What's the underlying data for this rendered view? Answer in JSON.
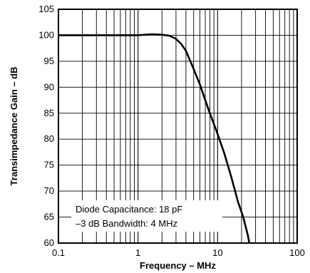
{
  "chart_data": {
    "type": "line",
    "title": "",
    "xlabel": "Frequency – MHz",
    "ylabel": "Transimpedance Gain – dB",
    "x_scale": "log",
    "xlim": [
      0.1,
      100
    ],
    "ylim": [
      60,
      105
    ],
    "grid": true,
    "x_ticks": [
      {
        "value": 0.1,
        "label": "0.1"
      },
      {
        "value": 1,
        "label": "1"
      },
      {
        "value": 10,
        "label": "10"
      },
      {
        "value": 100,
        "label": "100"
      }
    ],
    "y_ticks": [
      {
        "value": 60,
        "label": "60"
      },
      {
        "value": 65,
        "label": "65"
      },
      {
        "value": 70,
        "label": "70"
      },
      {
        "value": 75,
        "label": "75"
      },
      {
        "value": 80,
        "label": "80"
      },
      {
        "value": 85,
        "label": "85"
      },
      {
        "value": 90,
        "label": "90"
      },
      {
        "value": 95,
        "label": "95"
      },
      {
        "value": 100,
        "label": "100"
      },
      {
        "value": 105,
        "label": "105"
      }
    ],
    "series": [
      {
        "name": "",
        "x": [
          0.1,
          0.5,
          1.0,
          1.5,
          2.0,
          2.5,
          3.0,
          3.5,
          4.0,
          5.0,
          6.0,
          7.0,
          8.0,
          10.0,
          12.0,
          15.0,
          18.0,
          21.0,
          24.0,
          25.0
        ],
        "y": [
          100,
          100,
          100,
          100.2,
          100.1,
          99.9,
          99.3,
          98.3,
          97.0,
          93.5,
          90.5,
          87.5,
          85.0,
          81.0,
          77.5,
          72.5,
          68.0,
          65.0,
          61.5,
          60.0
        ]
      }
    ],
    "annotations": [
      "Diode Capacitance: 18 pF",
      "–3 dB Bandwidth: 4 MHz"
    ]
  }
}
